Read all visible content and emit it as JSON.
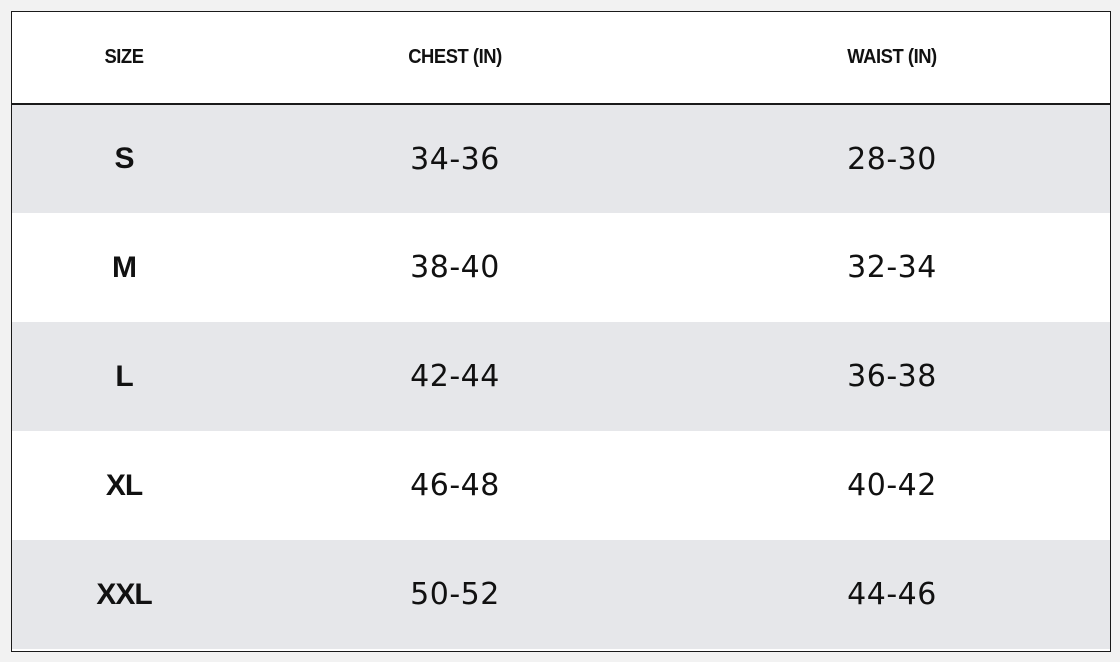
{
  "table": {
    "headers": {
      "size": "SIZE",
      "chest": "CHEST (IN)",
      "waist": "WAIST (IN)"
    },
    "rows": [
      {
        "size": "S",
        "chest": "34-36",
        "waist": "28-30"
      },
      {
        "size": "M",
        "chest": "38-40",
        "waist": "32-34"
      },
      {
        "size": "L",
        "chest": "42-44",
        "waist": "36-38"
      },
      {
        "size": "XL",
        "chest": "46-48",
        "waist": "40-42"
      },
      {
        "size": "XXL",
        "chest": "50-52",
        "waist": "44-46"
      }
    ]
  },
  "colors": {
    "border": "#1a1a1a",
    "row_shaded": "#e6e7ea",
    "row_plain": "#ffffff",
    "text": "#111111"
  }
}
